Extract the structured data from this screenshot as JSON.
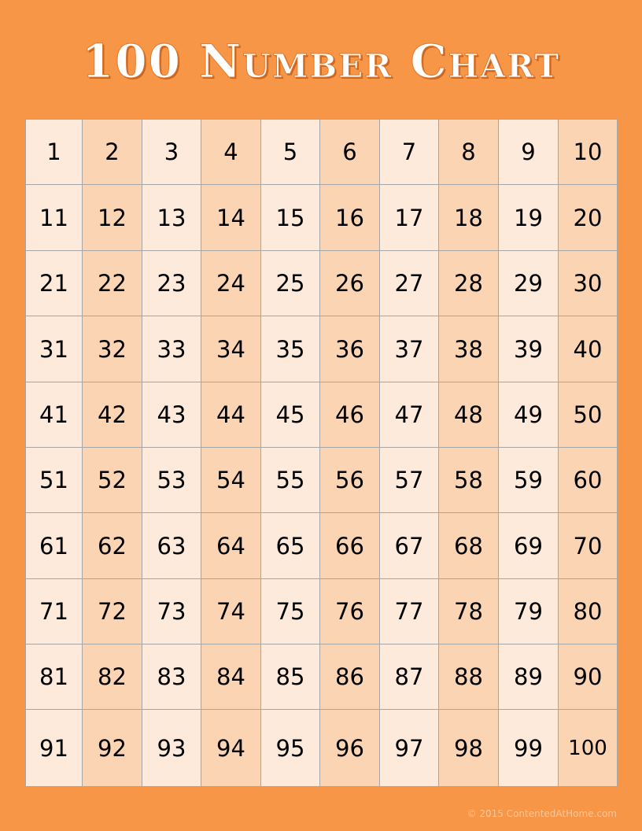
{
  "title": "100 Number Chart",
  "numbers": [
    1,
    2,
    3,
    4,
    5,
    6,
    7,
    8,
    9,
    10,
    11,
    12,
    13,
    14,
    15,
    16,
    17,
    18,
    19,
    20,
    21,
    22,
    23,
    24,
    25,
    26,
    27,
    28,
    29,
    30,
    31,
    32,
    33,
    34,
    35,
    36,
    37,
    38,
    39,
    40,
    41,
    42,
    43,
    44,
    45,
    46,
    47,
    48,
    49,
    50,
    51,
    52,
    53,
    54,
    55,
    56,
    57,
    58,
    59,
    60,
    61,
    62,
    63,
    64,
    65,
    66,
    67,
    68,
    69,
    70,
    71,
    72,
    73,
    74,
    75,
    76,
    77,
    78,
    79,
    80,
    81,
    82,
    83,
    84,
    85,
    86,
    87,
    88,
    89,
    90,
    91,
    92,
    93,
    94,
    95,
    96,
    97,
    98,
    99,
    100
  ],
  "footer": "© 2015 ContentedAtHome.com",
  "colors": {
    "background": "#F79646",
    "cell_light": "#FDEADA",
    "cell_dark": "#FBD4B4"
  }
}
